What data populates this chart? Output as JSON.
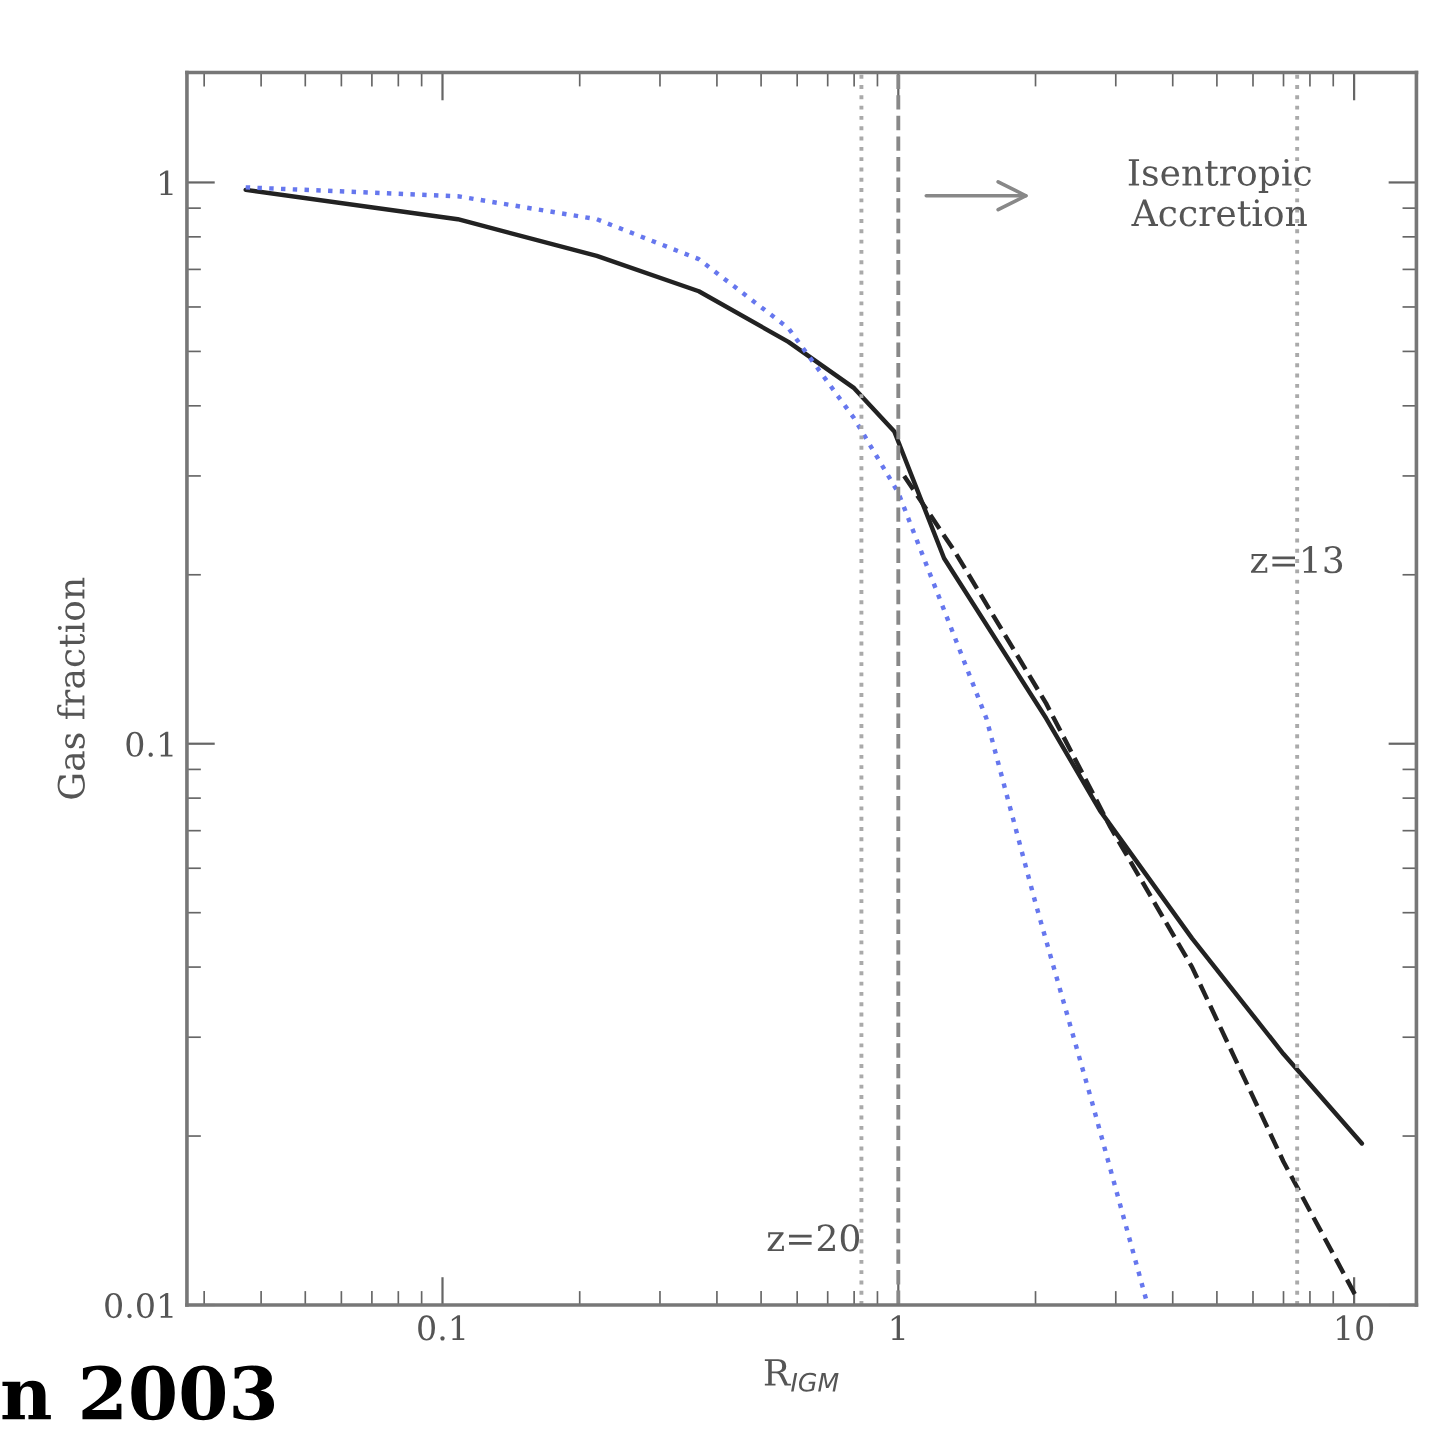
{
  "chart_data": {
    "type": "line",
    "xlabel": "R$_{IGM}$",
    "ylabel": "Gas fraction",
    "log": "xy",
    "xlim": [
      0.0275,
      13.7
    ],
    "ylim": [
      0.01,
      1.57
    ],
    "xticks": [
      0.1,
      1,
      10
    ],
    "yticks": [
      0.01,
      0.1,
      1
    ],
    "series": [
      {
        "color": "#222222",
        "line_style": "solid",
        "x": [
          0.037,
          0.108,
          0.218,
          0.365,
          0.574,
          0.8,
          0.98,
          1.26,
          2.11,
          2.77,
          4.41,
          7.0,
          10.4
        ],
        "values": [
          0.97,
          0.86,
          0.74,
          0.64,
          0.52,
          0.43,
          0.36,
          0.214,
          0.111,
          0.076,
          0.045,
          0.028,
          0.0194
        ]
      },
      {
        "color": "#222222",
        "line_style": "dashed",
        "x": [
          1.03,
          1.33,
          2.11,
          2.92,
          4.41,
          7.0,
          10.2
        ],
        "values": [
          0.3,
          0.22,
          0.118,
          0.071,
          0.04,
          0.018,
          0.0102
        ]
      },
      {
        "color": "#6677ee",
        "line_style": "dotted",
        "x": [
          0.037,
          0.108,
          0.218,
          0.365,
          0.574,
          0.8,
          1.0,
          1.56,
          2.0,
          2.66,
          3.5
        ],
        "values": [
          0.98,
          0.945,
          0.86,
          0.73,
          0.55,
          0.38,
          0.28,
          0.111,
          0.052,
          0.023,
          0.0102
        ]
      }
    ],
    "ref_lines": [
      {
        "axis": "x",
        "value": 0.83,
        "color": "#aaaaaa",
        "line_style": "dotted"
      },
      {
        "axis": "x",
        "value": 1,
        "color": "#888888",
        "line_style": "dashed"
      },
      {
        "axis": "x",
        "value": 7.5,
        "color": "#aaaaaa",
        "line_style": "dotted"
      }
    ],
    "annotations": [
      {
        "text": "z=20",
        "x": 0.83,
        "y": 0.013
      },
      {
        "text": "z=13",
        "x": 7.5,
        "y": 0.21
      },
      "Isentropic\nAccretion",
      "n 2003"
    ],
    "legend": false,
    "grid": false
  }
}
